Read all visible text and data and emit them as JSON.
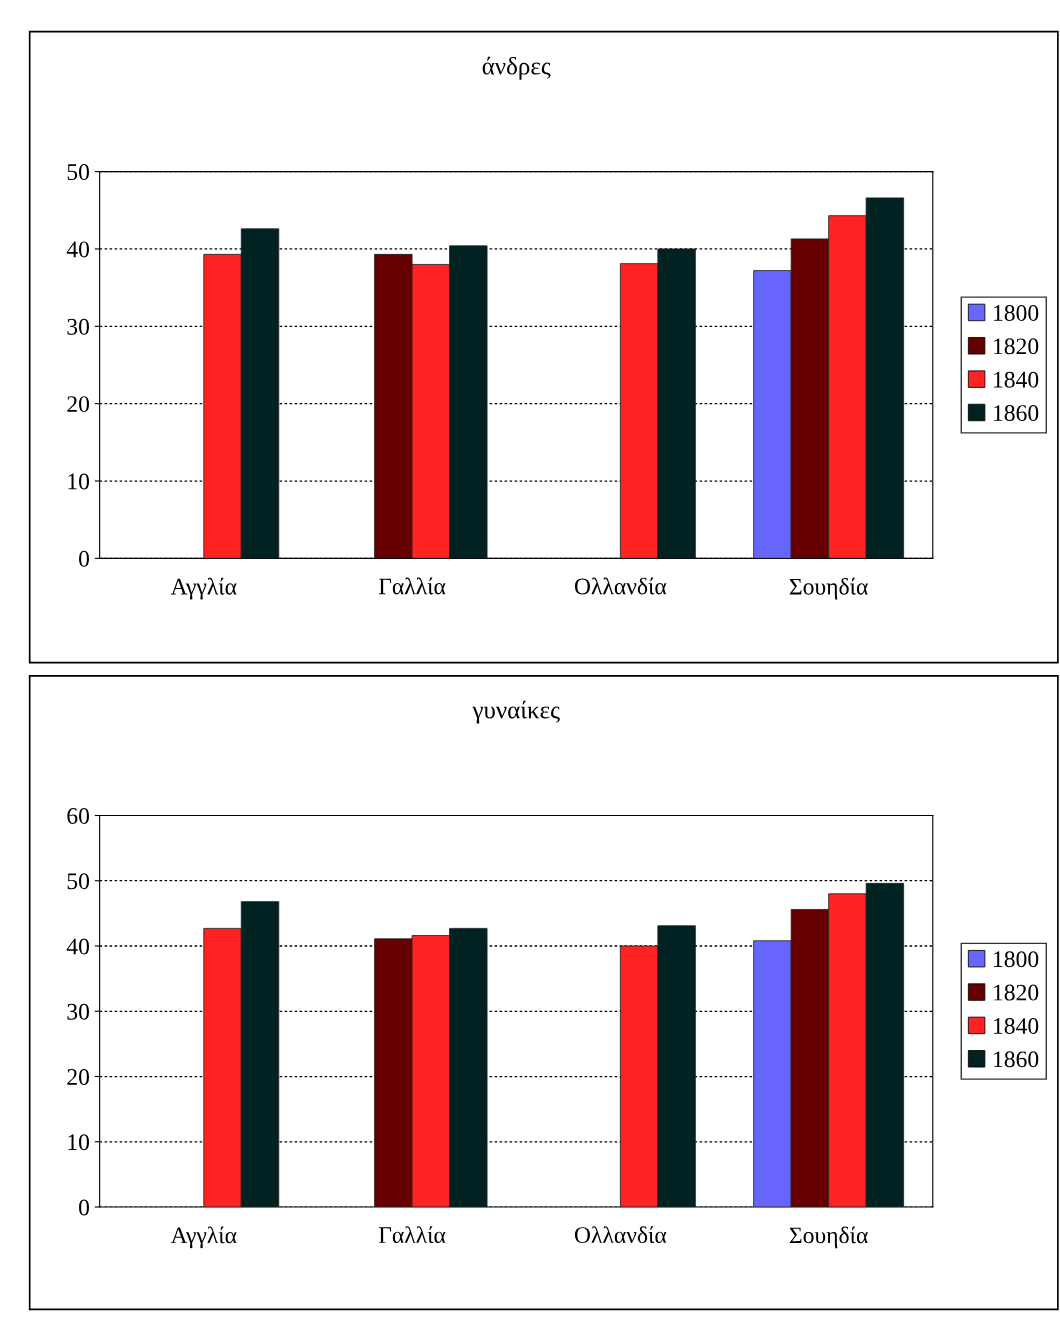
{
  "chart_data": [
    {
      "type": "bar",
      "title": "άνδρες",
      "categories": [
        "Αγγλία",
        "Γαλλία",
        "Ολλανδία",
        "Σουηδία"
      ],
      "ylim": [
        0,
        50
      ],
      "yticks": [
        0,
        10,
        20,
        30,
        40,
        50
      ],
      "grid": "y",
      "legend": "right",
      "series": [
        {
          "name": "1800",
          "color": "#6666ff",
          "values": [
            null,
            null,
            null,
            37.2
          ]
        },
        {
          "name": "1820",
          "color": "#660000",
          "values": [
            null,
            39.3,
            null,
            41.3
          ]
        },
        {
          "name": "1840",
          "color": "#ff2222",
          "values": [
            39.3,
            38.0,
            38.1,
            44.3
          ]
        },
        {
          "name": "1860",
          "color": "#002222",
          "values": [
            42.6,
            40.4,
            40.0,
            46.6
          ]
        }
      ]
    },
    {
      "type": "bar",
      "title": "γυναίκες",
      "categories": [
        "Αγγλία",
        "Γαλλία",
        "Ολλανδία",
        "Σουηδία"
      ],
      "ylim": [
        0,
        60
      ],
      "yticks": [
        0,
        10,
        20,
        30,
        40,
        50,
        60
      ],
      "grid": "y",
      "legend": "right",
      "series": [
        {
          "name": "1800",
          "color": "#6666ff",
          "values": [
            null,
            null,
            null,
            40.8
          ]
        },
        {
          "name": "1820",
          "color": "#660000",
          "values": [
            null,
            41.1,
            null,
            45.6
          ]
        },
        {
          "name": "1840",
          "color": "#ff2222",
          "values": [
            42.7,
            41.6,
            40.0,
            48.0
          ]
        },
        {
          "name": "1860",
          "color": "#002222",
          "values": [
            46.8,
            42.7,
            43.1,
            49.6
          ]
        }
      ]
    }
  ]
}
